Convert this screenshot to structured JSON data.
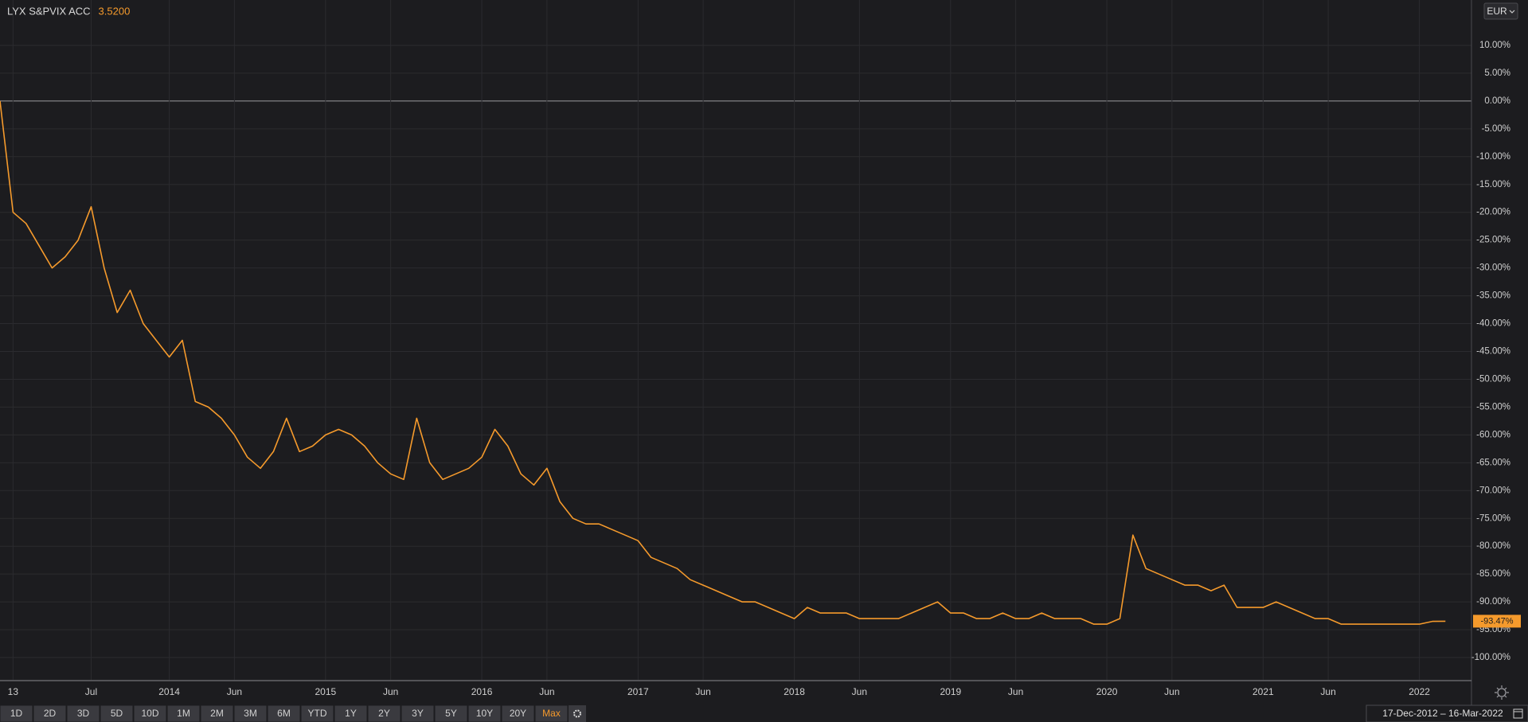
{
  "chart_data": {
    "type": "line",
    "title": "LYX S&PVIX ACC",
    "price": "3.5200",
    "currency": "EUR",
    "x": [
      "2012-12",
      "2013-01",
      "2013-02",
      "2013-03",
      "2013-04",
      "2013-05",
      "2013-06",
      "2013-07",
      "2013-08",
      "2013-09",
      "2013-10",
      "2013-11",
      "2013-12",
      "2014-01",
      "2014-02",
      "2014-03",
      "2014-04",
      "2014-05",
      "2014-06",
      "2014-07",
      "2014-08",
      "2014-09",
      "2014-10",
      "2014-11",
      "2014-12",
      "2015-01",
      "2015-02",
      "2015-03",
      "2015-04",
      "2015-05",
      "2015-06",
      "2015-07",
      "2015-08",
      "2015-09",
      "2015-10",
      "2015-11",
      "2015-12",
      "2016-01",
      "2016-02",
      "2016-03",
      "2016-04",
      "2016-05",
      "2016-06",
      "2016-07",
      "2016-08",
      "2016-09",
      "2016-10",
      "2016-11",
      "2016-12",
      "2017-01",
      "2017-02",
      "2017-03",
      "2017-04",
      "2017-05",
      "2017-06",
      "2017-07",
      "2017-08",
      "2017-09",
      "2017-10",
      "2017-11",
      "2017-12",
      "2018-01",
      "2018-02",
      "2018-03",
      "2018-04",
      "2018-05",
      "2018-06",
      "2018-07",
      "2018-08",
      "2018-09",
      "2018-10",
      "2018-11",
      "2018-12",
      "2019-01",
      "2019-02",
      "2019-03",
      "2019-04",
      "2019-05",
      "2019-06",
      "2019-07",
      "2019-08",
      "2019-09",
      "2019-10",
      "2019-11",
      "2019-12",
      "2020-01",
      "2020-02",
      "2020-03",
      "2020-04",
      "2020-05",
      "2020-06",
      "2020-07",
      "2020-08",
      "2020-09",
      "2020-10",
      "2020-11",
      "2020-12",
      "2021-01",
      "2021-02",
      "2021-03",
      "2021-04",
      "2021-05",
      "2021-06",
      "2021-07",
      "2021-08",
      "2021-09",
      "2021-10",
      "2021-11",
      "2021-12",
      "2022-01",
      "2022-02",
      "2022-03"
    ],
    "series": [
      {
        "name": "LYX S&PVIX ACC",
        "color": "#f59a2c",
        "values": [
          0,
          -20,
          -22,
          -26,
          -30,
          -28,
          -25,
          -19,
          -30,
          -38,
          -34,
          -40,
          -43,
          -46,
          -43,
          -54,
          -55,
          -57,
          -60,
          -64,
          -66,
          -63,
          -57,
          -63,
          -62,
          -60,
          -59,
          -60,
          -62,
          -65,
          -67,
          -68,
          -57,
          -65,
          -68,
          -67,
          -66,
          -64,
          -59,
          -62,
          -67,
          -69,
          -66,
          -72,
          -75,
          -76,
          -76,
          -77,
          -78,
          -79,
          -82,
          -83,
          -84,
          -86,
          -87,
          -88,
          -89,
          -90,
          -90,
          -91,
          -92,
          -93,
          -91,
          -92,
          -92,
          -92,
          -93,
          -93,
          -93,
          -93,
          -92,
          -91,
          -90,
          -92,
          -92,
          -93,
          -93,
          -92,
          -93,
          -93,
          -92,
          -93,
          -93,
          -93,
          -94,
          -94,
          -93,
          -78,
          -84,
          -85,
          -86,
          -87,
          -87,
          -88,
          -87,
          -91,
          -91,
          -91,
          -90,
          -91,
          -92,
          -93,
          -93,
          -94,
          -94,
          -94,
          -94,
          -94,
          -94,
          -94,
          -93.5,
          -93.47
        ]
      }
    ],
    "current_value": {
      "value": -93.47,
      "label": "-93.47%"
    },
    "xlim": [
      "2012-12",
      "2022-05"
    ],
    "xticks": [
      {
        "value": "2013-01",
        "label": "13"
      },
      {
        "value": "2013-07",
        "label": "Jul"
      },
      {
        "value": "2014-01",
        "label": "2014"
      },
      {
        "value": "2014-06",
        "label": "Jun"
      },
      {
        "value": "2015-01",
        "label": "2015"
      },
      {
        "value": "2015-06",
        "label": "Jun"
      },
      {
        "value": "2016-01",
        "label": "2016"
      },
      {
        "value": "2016-06",
        "label": "Jun"
      },
      {
        "value": "2017-01",
        "label": "2017"
      },
      {
        "value": "2017-06",
        "label": "Jun"
      },
      {
        "value": "2018-01",
        "label": "2018"
      },
      {
        "value": "2018-06",
        "label": "Jun"
      },
      {
        "value": "2019-01",
        "label": "2019"
      },
      {
        "value": "2019-06",
        "label": "Jun"
      },
      {
        "value": "2020-01",
        "label": "2020"
      },
      {
        "value": "2020-06",
        "label": "Jun"
      },
      {
        "value": "2021-01",
        "label": "2021"
      },
      {
        "value": "2021-06",
        "label": "Jun"
      },
      {
        "value": "2022-01",
        "label": "2022"
      }
    ],
    "ylim": [
      -104,
      15
    ],
    "yticks": [
      {
        "value": 10,
        "label": "10.00%"
      },
      {
        "value": 5,
        "label": "5.00%"
      },
      {
        "value": 0,
        "label": "0.00%"
      },
      {
        "value": -5,
        "label": "-5.00%"
      },
      {
        "value": -10,
        "label": "-10.00%"
      },
      {
        "value": -15,
        "label": "-15.00%"
      },
      {
        "value": -20,
        "label": "-20.00%"
      },
      {
        "value": -25,
        "label": "-25.00%"
      },
      {
        "value": -30,
        "label": "-30.00%"
      },
      {
        "value": -35,
        "label": "-35.00%"
      },
      {
        "value": -40,
        "label": "-40.00%"
      },
      {
        "value": -45,
        "label": "-45.00%"
      },
      {
        "value": -50,
        "label": "-50.00%"
      },
      {
        "value": -55,
        "label": "-55.00%"
      },
      {
        "value": -60,
        "label": "-60.00%"
      },
      {
        "value": -65,
        "label": "-65.00%"
      },
      {
        "value": -70,
        "label": "-70.00%"
      },
      {
        "value": -75,
        "label": "-75.00%"
      },
      {
        "value": -80,
        "label": "-80.00%"
      },
      {
        "value": -85,
        "label": "-85.00%"
      },
      {
        "value": -90,
        "label": "-90.00%"
      },
      {
        "value": -95,
        "label": "-95.00%"
      },
      {
        "value": -100,
        "label": "-100.00%"
      }
    ],
    "grid": true
  },
  "ui": {
    "ranges": [
      "1D",
      "2D",
      "3D",
      "5D",
      "10D",
      "1M",
      "2M",
      "3M",
      "6M",
      "YTD",
      "1Y",
      "2Y",
      "3Y",
      "5Y",
      "10Y",
      "20Y",
      "Max"
    ],
    "active_range": "Max",
    "date_range": "17-Dec-2012  –  16-Mar-2022"
  }
}
